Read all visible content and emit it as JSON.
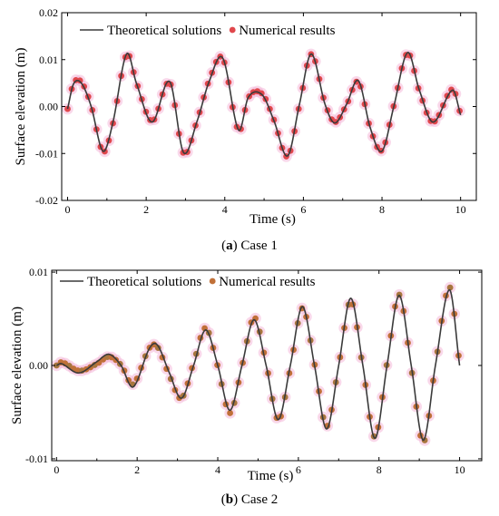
{
  "colors": {
    "line": "#3a3a3a",
    "point_a": "#e0474c",
    "point_b": "#c07038",
    "point_b_mix": "#a8763e",
    "halo": "#f4b8d8"
  },
  "chart_data": [
    {
      "type": "line",
      "caption": {
        "label": "a",
        "text": " Case 1"
      },
      "xlabel": "Time (s)",
      "ylabel": "Surface elevation (m)",
      "xlim": [
        -0.15,
        10.4
      ],
      "ylim": [
        -0.02,
        0.02
      ],
      "xticks": [
        0,
        2,
        4,
        6,
        8,
        10
      ],
      "xtick_labels": [
        "0",
        "2",
        "4",
        "6",
        "8",
        "10"
      ],
      "yticks": [
        -0.02,
        -0.01,
        0.0,
        0.01,
        0.02
      ],
      "ytick_labels": [
        "-0.02",
        "-0.01",
        "0.00",
        "0.01",
        "0.02"
      ],
      "legend": {
        "position": "top-left",
        "entries": [
          "Theoretical solutions",
          "Numerical results"
        ]
      },
      "grid": false,
      "t_range": [
        0,
        10
      ],
      "series": [
        {
          "name": "Theoretical solutions",
          "kind": "line",
          "x": [
            0.0,
            0.15,
            0.35,
            0.6,
            0.9,
            1.15,
            1.5,
            1.75,
            2.15,
            2.6,
            2.95,
            3.3,
            3.6,
            3.95,
            4.35,
            4.6,
            4.95,
            5.25,
            5.6,
            5.9,
            6.2,
            6.55,
            6.8,
            7.1,
            7.4,
            7.7,
            8.0,
            8.3,
            8.65,
            8.95,
            9.3,
            9.8,
            10.0
          ],
          "y": [
            -0.0005,
            0.0048,
            0.005,
            0.0,
            -0.0095,
            -0.0035,
            0.0112,
            0.005,
            -0.0033,
            0.0053,
            -0.0098,
            -0.003,
            0.0053,
            0.0103,
            -0.005,
            0.002,
            0.0025,
            -0.003,
            -0.0105,
            0.0005,
            0.0112,
            0.0005,
            -0.0035,
            0.0005,
            0.0055,
            -0.0045,
            -0.0095,
            0.0,
            0.0115,
            0.0035,
            -0.0033,
            0.0035,
            -0.0018
          ]
        },
        {
          "name": "Numerical results",
          "kind": "points",
          "color_key": "point_a",
          "marker_step": 0.105,
          "jitter": 0.00025
        }
      ]
    },
    {
      "type": "line",
      "caption": {
        "label": "b",
        "text": " Case 2"
      },
      "xlabel": "Time (s)",
      "ylabel": "Surface elevation (m)",
      "xlim": [
        -0.12,
        10.55
      ],
      "ylim": [
        -0.0102,
        0.0102
      ],
      "xticks": [
        0,
        2,
        4,
        6,
        8,
        10
      ],
      "xtick_labels": [
        "0",
        "2",
        "4",
        "6",
        "8",
        "10"
      ],
      "yticks": [
        -0.01,
        0.0,
        0.01
      ],
      "ytick_labels": [
        "-0.01",
        "0.00",
        "0.01"
      ],
      "legend": {
        "position": "top",
        "entries": [
          "Theoretical solutions",
          "Numerical results"
        ]
      },
      "grid": false,
      "t_range": [
        0,
        10
      ],
      "series": [
        {
          "name": "Theoretical solutions",
          "kind": "line",
          "x": [
            0.0,
            0.12,
            0.55,
            1.0,
            1.3,
            1.6,
            1.9,
            2.3,
            2.5,
            2.8,
            3.1,
            3.4,
            3.7,
            4.0,
            4.3,
            4.6,
            4.9,
            5.2,
            5.5,
            5.8,
            6.1,
            6.4,
            6.7,
            7.0,
            7.3,
            7.6,
            7.9,
            8.2,
            8.5,
            8.8,
            9.1,
            9.4,
            9.75,
            10.0
          ],
          "y": [
            0.0,
            0.0002,
            -0.0008,
            0.0004,
            0.0012,
            0.0,
            -0.0023,
            0.0018,
            0.0022,
            -0.0008,
            -0.0035,
            0.0,
            0.0038,
            0.0,
            -0.0048,
            0.0,
            0.0049,
            0.0,
            -0.0058,
            0.0,
            0.0063,
            0.0,
            -0.0068,
            0.0,
            0.0072,
            0.0,
            -0.0078,
            0.0,
            0.0075,
            0.0,
            -0.008,
            0.0,
            0.0081,
            0.0
          ]
        },
        {
          "name": "Numerical results",
          "kind": "points",
          "color_key": "point_b",
          "marker_step": 0.105,
          "jitter": 0.0003
        }
      ]
    }
  ]
}
